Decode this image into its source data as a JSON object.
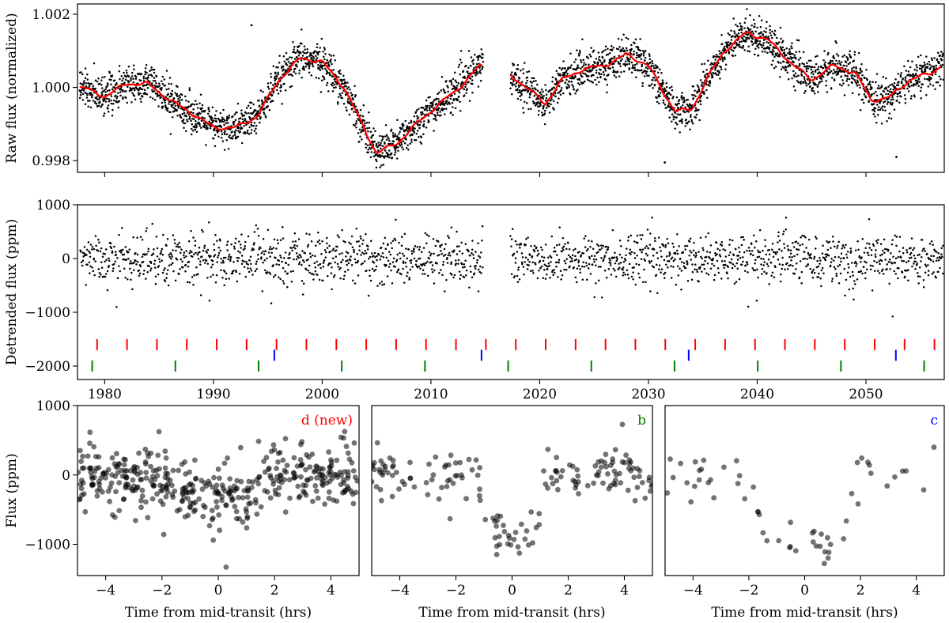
{
  "chart_data": [
    {
      "id": "raw",
      "type": "scatter",
      "ylabel": "Raw flux (normalized)",
      "xlim": [
        1977.5,
        2057.2
      ],
      "ylim": [
        0.99768,
        1.00228
      ],
      "yticks": [
        0.998,
        1.0,
        1.002
      ],
      "ytick_labels": [
        "0.998",
        "1.000",
        "1.002"
      ],
      "gaps": [
        [
          2014.8,
          2017.3
        ]
      ],
      "point_color": "#000000",
      "trend_color": "#ff0000",
      "trend": {
        "x": [
          1978,
          1980,
          1982,
          1984,
          1986,
          1988,
          1990,
          1992,
          1994,
          1996,
          1998,
          2000,
          2002,
          2004,
          2005,
          2007,
          2009,
          2011,
          2013,
          2014.5,
          2017.5,
          2019,
          2020.5,
          2022,
          2024,
          2026,
          2028,
          2030,
          2031.5,
          2032.5,
          2034,
          2035.5,
          2037,
          2039,
          2041,
          2043,
          2045,
          2047,
          2049,
          2050.5,
          2052,
          2054,
          2056,
          2057
        ],
        "y": [
          1.0,
          0.99975,
          1.0001,
          1.0001,
          0.99965,
          0.9993,
          0.9989,
          0.9989,
          0.9992,
          1.0002,
          1.0008,
          1.0007,
          1.0,
          0.9988,
          0.9982,
          0.9985,
          0.9991,
          0.9996,
          1.0001,
          1.0006,
          1.0003,
          0.99995,
          0.99955,
          1.0002,
          1.0005,
          1.0006,
          1.0009,
          1.0006,
          0.9998,
          0.99935,
          0.9994,
          1.0003,
          1.001,
          1.0015,
          1.0013,
          1.0007,
          1.0002,
          1.0006,
          1.0004,
          0.99965,
          0.9997,
          1.0002,
          1.0004,
          1.0006
        ]
      },
      "noise_sigma": 0.00025,
      "outliers": [
        {
          "x": 1993.5,
          "y": 1.0017
        },
        {
          "x": 2031.5,
          "y": 0.99795
        },
        {
          "x": 2052.8,
          "y": 0.9981
        }
      ]
    },
    {
      "id": "detrended",
      "type": "scatter",
      "ylabel": "Detrended flux (ppm)",
      "xlim": [
        1977.5,
        2057.2
      ],
      "ylim": [
        -2250,
        1000
      ],
      "yticks": [
        -2000,
        -1000,
        0,
        1000
      ],
      "ytick_labels": [
        "−2000",
        "−1000",
        "0",
        "1000"
      ],
      "xticks": [
        1980,
        1990,
        2000,
        2010,
        2020,
        2030,
        2040,
        2050
      ],
      "xtick_labels": [
        "1980",
        "1990",
        "2000",
        "2010",
        "2020",
        "2030",
        "2040",
        "2050"
      ],
      "noise_sigma": 230,
      "gaps": [
        [
          2014.8,
          2017.3
        ]
      ],
      "transit_markers": [
        {
          "planet": "d",
          "color": "#ff0000",
          "y_level": -1600,
          "epochs": [
            1979.3,
            1982.05,
            1984.8,
            1987.55,
            1990.3,
            1993.05,
            1995.8,
            1998.55,
            2001.3,
            2004.05,
            2006.8,
            2009.55,
            2012.3,
            2015.05,
            2017.8,
            2020.55,
            2023.3,
            2026.05,
            2028.8,
            2031.55,
            2034.3,
            2037.05,
            2039.8,
            2042.55,
            2045.3,
            2048.05,
            2050.8,
            2053.55,
            2056.3
          ]
        },
        {
          "planet": "c",
          "color": "#0000ff",
          "y_level": -1800,
          "epochs": [
            1995.6,
            2014.65,
            2033.7,
            2052.75
          ]
        },
        {
          "planet": "b",
          "color": "#008000",
          "y_level": -2000,
          "epochs": [
            1978.85,
            1986.5,
            1994.15,
            2001.8,
            2009.45,
            2017.1,
            2024.75,
            2032.4,
            2040.05,
            2047.7,
            2055.35
          ]
        }
      ]
    },
    {
      "id": "fold-d",
      "type": "scatter",
      "title": "d (new)",
      "title_color": "#ff0000",
      "ylabel": "Flux (ppm)",
      "xlabel": "Time from mid-transit (hrs)",
      "xlim": [
        -5,
        5
      ],
      "ylim": [
        -1450,
        1000
      ],
      "xticks": [
        -4,
        -2,
        0,
        2,
        4
      ],
      "xtick_labels": [
        "−4",
        "−2",
        "0",
        "2",
        "4"
      ],
      "yticks": [
        -1000,
        0,
        1000
      ],
      "ytick_labels": [
        "−1000",
        "0",
        "1000"
      ],
      "n_points": 420,
      "depth_ppm": 300,
      "duration_hrs": 3.6,
      "noise_sigma": 230
    },
    {
      "id": "fold-b",
      "type": "scatter",
      "title": "b",
      "title_color": "#008000",
      "xlabel": "Time from mid-transit (hrs)",
      "xlim": [
        -5,
        5
      ],
      "ylim": [
        -1450,
        1000
      ],
      "xticks": [
        -4,
        -2,
        0,
        2,
        4
      ],
      "xtick_labels": [
        "−4",
        "−2",
        "0",
        "2",
        "4"
      ],
      "n_points": 170,
      "depth_ppm": 850,
      "duration_hrs": 2.5,
      "noise_sigma": 170
    },
    {
      "id": "fold-c",
      "type": "scatter",
      "title": "c",
      "title_color": "#0000ff",
      "xlabel": "Time from mid-transit (hrs)",
      "xlim": [
        -5,
        5
      ],
      "ylim": [
        -1450,
        1000
      ],
      "xticks": [
        -4,
        -2,
        0,
        2,
        4
      ],
      "xtick_labels": [
        "−4",
        "−2",
        "0",
        "2",
        "4"
      ],
      "n_points": 60,
      "depth_ppm": 1100,
      "duration_hrs": 4.0,
      "noise_sigma": 180
    }
  ]
}
